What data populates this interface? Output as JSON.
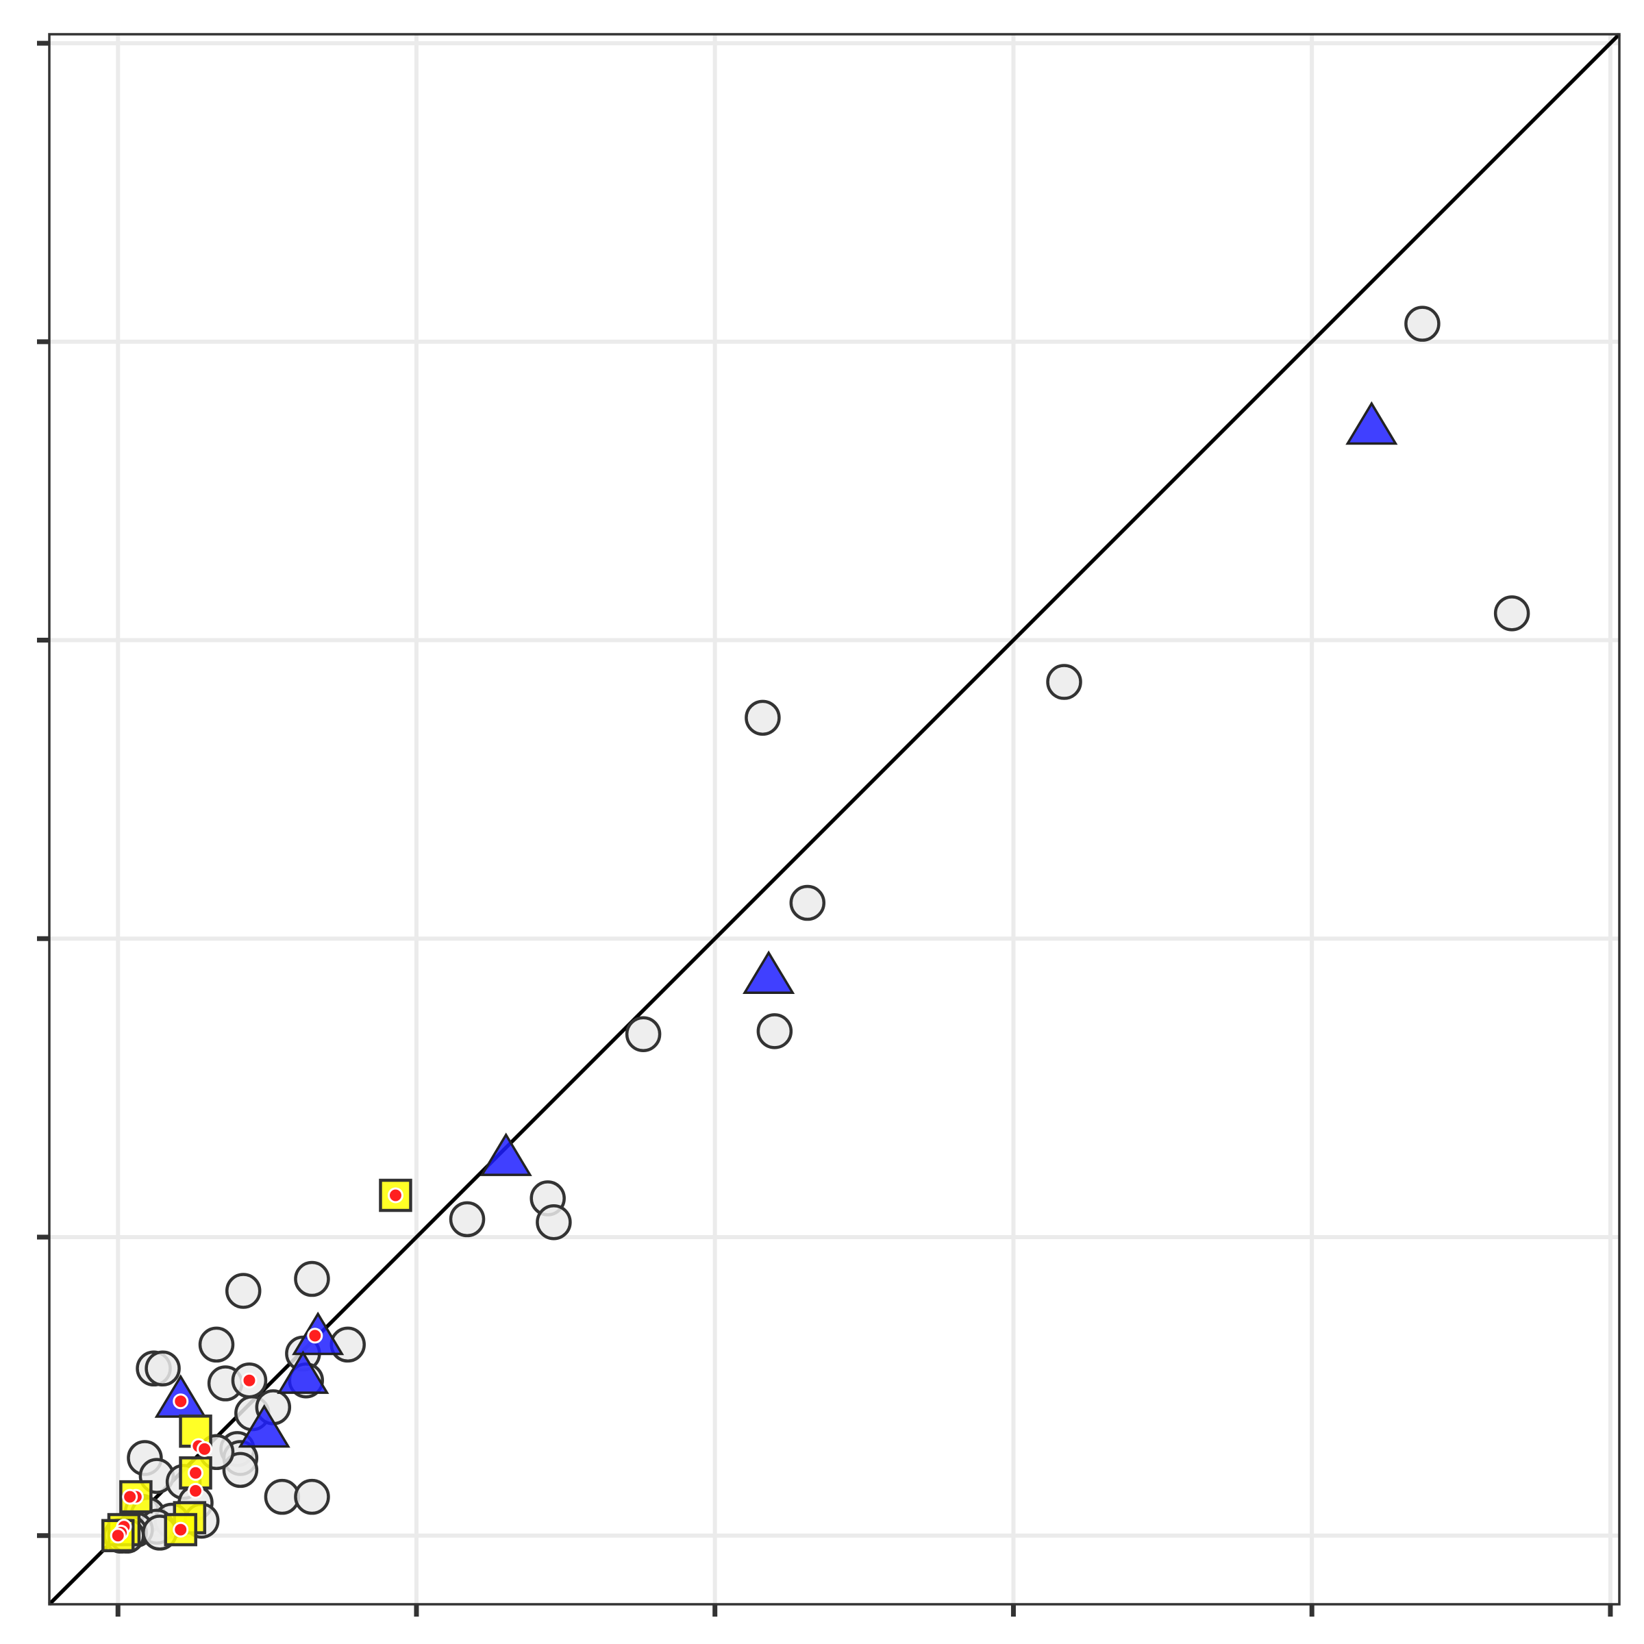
{
  "chart_data": {
    "type": "scatter",
    "title": "",
    "xlabel": "",
    "ylabel": "",
    "xlim": [
      -0.23,
      5.03
    ],
    "ylim": [
      -0.23,
      5.03
    ],
    "x_ticks": [
      0,
      1,
      2,
      3,
      4,
      5
    ],
    "y_ticks": [
      0,
      1,
      2,
      3,
      4,
      5
    ],
    "tick_labels_shown": false,
    "grid": true,
    "reference_line": {
      "type": "identity",
      "color": "#000000"
    },
    "series": [
      {
        "marker": "circle",
        "fill": "#ebebeb",
        "points": [
          {
            "x": 4.37,
            "y": 4.06
          },
          {
            "x": 4.67,
            "y": 3.09
          },
          {
            "x": 3.17,
            "y": 2.86
          },
          {
            "x": 2.16,
            "y": 2.74
          },
          {
            "x": 2.31,
            "y": 2.12
          },
          {
            "x": 2.2,
            "y": 1.69
          },
          {
            "x": 1.76,
            "y": 1.68
          },
          {
            "x": 1.44,
            "y": 1.13
          },
          {
            "x": 1.46,
            "y": 1.05
          },
          {
            "x": 1.17,
            "y": 1.06
          },
          {
            "x": 0.65,
            "y": 0.86
          },
          {
            "x": 0.42,
            "y": 0.82
          },
          {
            "x": 0.33,
            "y": 0.64
          },
          {
            "x": 0.77,
            "y": 0.64
          },
          {
            "x": 0.12,
            "y": 0.56
          },
          {
            "x": 0.15,
            "y": 0.56
          },
          {
            "x": 0.36,
            "y": 0.51
          },
          {
            "x": 0.44,
            "y": 0.52
          },
          {
            "x": 0.62,
            "y": 0.61
          },
          {
            "x": 0.63,
            "y": 0.52
          },
          {
            "x": 0.45,
            "y": 0.41
          },
          {
            "x": 0.52,
            "y": 0.43
          },
          {
            "x": 0.4,
            "y": 0.29
          },
          {
            "x": 0.41,
            "y": 0.26
          },
          {
            "x": 0.09,
            "y": 0.26
          },
          {
            "x": 0.13,
            "y": 0.2
          },
          {
            "x": 0.41,
            "y": 0.22
          },
          {
            "x": 0.33,
            "y": 0.28
          },
          {
            "x": 0.22,
            "y": 0.18
          },
          {
            "x": 0.55,
            "y": 0.13
          },
          {
            "x": 0.65,
            "y": 0.13
          },
          {
            "x": 0.26,
            "y": 0.11
          },
          {
            "x": 0.08,
            "y": 0.08
          },
          {
            "x": 0.1,
            "y": 0.07
          },
          {
            "x": 0.18,
            "y": 0.05
          },
          {
            "x": 0.28,
            "y": 0.05
          },
          {
            "x": 0.13,
            "y": 0.03
          },
          {
            "x": 0.06,
            "y": 0.02
          },
          {
            "x": 0.04,
            "y": 0.01
          },
          {
            "x": 0.01,
            "y": 0.0
          },
          {
            "x": 0.03,
            "y": 0.0
          },
          {
            "x": 0.14,
            "y": 0.01
          }
        ]
      },
      {
        "marker": "triangle",
        "fill": "#1f1fff",
        "points": [
          {
            "x": 4.2,
            "y": 3.71
          },
          {
            "x": 2.18,
            "y": 1.87
          },
          {
            "x": 1.3,
            "y": 1.26
          },
          {
            "x": 0.67,
            "y": 0.66
          },
          {
            "x": 0.62,
            "y": 0.53
          },
          {
            "x": 0.21,
            "y": 0.45
          },
          {
            "x": 0.49,
            "y": 0.35
          }
        ]
      },
      {
        "marker": "square",
        "fill": "#ffff00",
        "points": [
          {
            "x": 0.93,
            "y": 1.14
          },
          {
            "x": 0.26,
            "y": 0.35
          },
          {
            "x": 0.26,
            "y": 0.21
          },
          {
            "x": 0.24,
            "y": 0.06
          },
          {
            "x": 0.06,
            "y": 0.13
          },
          {
            "x": 0.21,
            "y": 0.02
          },
          {
            "x": 0.02,
            "y": 0.02
          },
          {
            "x": 0.0,
            "y": 0.0
          }
        ]
      },
      {
        "marker": "small-dot",
        "fill": "#ff1f1f",
        "points": [
          {
            "x": 0.93,
            "y": 1.14
          },
          {
            "x": 0.66,
            "y": 0.67
          },
          {
            "x": 0.44,
            "y": 0.52
          },
          {
            "x": 0.21,
            "y": 0.45
          },
          {
            "x": 0.27,
            "y": 0.3
          },
          {
            "x": 0.29,
            "y": 0.29
          },
          {
            "x": 0.26,
            "y": 0.21
          },
          {
            "x": 0.26,
            "y": 0.15
          },
          {
            "x": 0.06,
            "y": 0.13
          },
          {
            "x": 0.04,
            "y": 0.13
          },
          {
            "x": 0.21,
            "y": 0.02
          },
          {
            "x": 0.02,
            "y": 0.03
          },
          {
            "x": 0.01,
            "y": 0.01
          },
          {
            "x": 0.0,
            "y": 0.0
          }
        ]
      }
    ]
  }
}
